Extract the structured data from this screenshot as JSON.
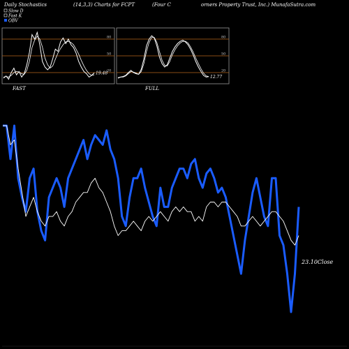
{
  "header": {
    "left": "Daily Stochastics",
    "params": "(14,3,3) Charts for FCPT",
    "company": "(Four C",
    "company2": "orners Property Trust, Inc.) MunafaSutra.com"
  },
  "legend": [
    {
      "label": "Slow D",
      "color": "#ffffff"
    },
    {
      "label": "Fast K",
      "color": "#ffffff"
    },
    {
      "label": "OBV",
      "color": "#1a5cff"
    }
  ],
  "colors": {
    "background": "#000000",
    "panel_border": "#999999",
    "level_line": "#b5651d",
    "stoch_line": "#ffffff",
    "obv_line": "#1a5cff",
    "price_line": "#ffffff"
  },
  "chart_data": [
    {
      "type": "line",
      "title": "FAST",
      "ylim": [
        0,
        100
      ],
      "levels": [
        20,
        50,
        80
      ],
      "level_labels": [
        "20",
        "50",
        "80"
      ],
      "last_value": "19.48",
      "series": [
        {
          "values": [
            10,
            14,
            8,
            20,
            28,
            16,
            22,
            12,
            18,
            34,
            56,
            88,
            80,
            92,
            70,
            40,
            30,
            25,
            30,
            45,
            62,
            58,
            75,
            82,
            72,
            80,
            70,
            65,
            55,
            40,
            30,
            22,
            18,
            12,
            15,
            19.48
          ]
        },
        {
          "values": [
            12,
            13,
            12,
            15,
            20,
            22,
            21,
            18,
            17,
            24,
            40,
            65,
            78,
            85,
            80,
            66,
            46,
            34,
            28,
            32,
            44,
            55,
            63,
            70,
            75,
            76,
            74,
            70,
            62,
            53,
            42,
            32,
            24,
            18,
            15,
            16
          ]
        }
      ]
    },
    {
      "type": "line",
      "title": "FULL",
      "ylim": [
        0,
        100
      ],
      "levels": [
        20,
        50,
        80
      ],
      "level_labels": [
        "20",
        "50",
        "80"
      ],
      "last_value": "12.77",
      "series": [
        {
          "values": [
            10,
            12,
            13,
            15,
            20,
            24,
            20,
            18,
            17,
            26,
            44,
            68,
            80,
            86,
            82,
            68,
            48,
            36,
            30,
            34,
            46,
            58,
            66,
            72,
            76,
            78,
            75,
            70,
            62,
            52,
            40,
            30,
            22,
            15,
            12,
            12.77
          ]
        },
        {
          "values": [
            11,
            12,
            12,
            14,
            18,
            22,
            21,
            19,
            17,
            22,
            36,
            58,
            74,
            83,
            83,
            74,
            58,
            42,
            33,
            32,
            40,
            52,
            61,
            68,
            73,
            76,
            76,
            73,
            66,
            57,
            46,
            36,
            27,
            19,
            14,
            13
          ]
        }
      ]
    },
    {
      "type": "line",
      "title": "",
      "last_value_label": "23.10",
      "last_value_suffix": "Close",
      "series": [
        {
          "name": "OBV",
          "values": [
            49,
            49,
            42,
            49,
            38,
            34,
            31,
            38,
            40,
            31,
            27,
            25,
            34,
            36,
            38,
            36,
            32,
            38,
            40,
            42,
            44,
            46,
            42,
            45,
            47,
            46,
            45,
            48,
            44,
            42,
            38,
            30,
            28,
            34,
            38,
            38,
            40,
            36,
            33,
            30,
            28,
            36,
            32,
            32,
            36,
            38,
            40,
            40,
            38,
            41,
            42,
            38,
            36,
            39,
            40,
            38,
            35,
            36,
            34,
            30,
            26,
            22,
            18,
            25,
            30,
            35,
            38,
            34,
            30,
            28,
            38,
            38,
            26,
            24,
            18,
            10,
            18,
            32
          ]
        },
        {
          "values": [
            49,
            49,
            45,
            46,
            40,
            35,
            30,
            32,
            34,
            31,
            29,
            28,
            30,
            30,
            31,
            29,
            28,
            30,
            31,
            33,
            34,
            35,
            35,
            37,
            38,
            36,
            35,
            33,
            31,
            28,
            26,
            27,
            27,
            28,
            29,
            28,
            27,
            29,
            30,
            29,
            30,
            31,
            30,
            29,
            31,
            32,
            31,
            32,
            31,
            31,
            29,
            30,
            29,
            32,
            33,
            33,
            32,
            33,
            33,
            32,
            31,
            30,
            28,
            28,
            29,
            30,
            29,
            28,
            29,
            30,
            31,
            31,
            30,
            29,
            27,
            25,
            24,
            26
          ]
        }
      ]
    }
  ]
}
